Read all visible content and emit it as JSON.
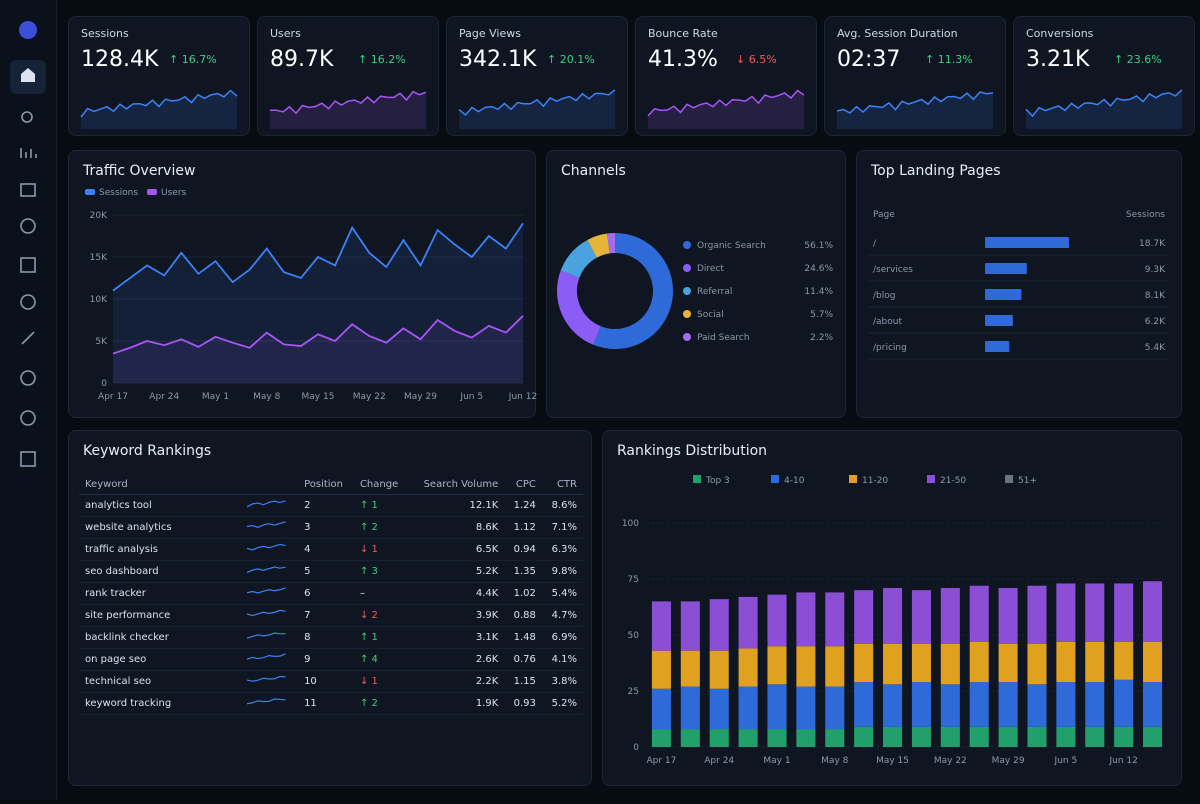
{
  "kpis": [
    {
      "label": "Sessions",
      "value": "128.4K",
      "change": "↑ 16.7%"
    },
    {
      "label": "Users",
      "value": "89.7K",
      "change": "↑ 16.2%"
    },
    {
      "label": "Page Views",
      "value": "342.1K",
      "change": "↑ 20.1%"
    },
    {
      "label": "Bounce Rate",
      "value": "41.3%",
      "change": "↓ 6.5%"
    },
    {
      "label": "Avg. Session Duration",
      "value": "02:37",
      "change": "↑ 11.3%"
    },
    {
      "label": "Conversions",
      "value": "3.21K",
      "change": "↑ 23.6%"
    }
  ],
  "traffic_overview": {
    "type": "line",
    "title": "Traffic Overview",
    "categories": [
      "Apr 17",
      null,
      null,
      "Apr 24",
      null,
      null,
      "May 1",
      null,
      null,
      "May 8",
      null,
      null,
      "May 15",
      null,
      null,
      "May 22",
      null,
      null,
      "May 29",
      null,
      null,
      "Jun 5",
      null,
      null,
      "Jun 12"
    ],
    "series": [
      {
        "name": "Sessions",
        "color": "#3b82f6",
        "values": [
          11000,
          12500,
          14000,
          12800,
          15500,
          13000,
          14500,
          12000,
          13500,
          16000,
          13200,
          12500,
          15000,
          14000,
          18500,
          15500,
          13800,
          17000,
          14000,
          18200,
          16500,
          15000,
          17500,
          16000,
          19000
        ]
      },
      {
        "name": "Users",
        "color": "#a855f7",
        "values": [
          3500,
          4200,
          5000,
          4500,
          5200,
          4300,
          5500,
          4800,
          4200,
          6000,
          4600,
          4400,
          5800,
          5000,
          7000,
          5600,
          4800,
          6500,
          5200,
          7500,
          6200,
          5400,
          6800,
          6000,
          8000
        ]
      }
    ],
    "ylim": [
      0,
      20000
    ],
    "yticks": [
      0,
      {
        "value": 5000,
        "label": "5K"
      },
      {
        "value": 10000,
        "label": "10K"
      },
      {
        "value": 15000,
        "label": "15K"
      },
      {
        "value": 20000,
        "label": "20K"
      }
    ]
  },
  "channels": {
    "type": "pie",
    "title": "Channels",
    "categories": [
      "Organic Search",
      "Direct",
      "Referral",
      "Social",
      "Paid Search"
    ],
    "values": [
      56.1,
      24.6,
      11.4,
      5.7,
      2.2
    ],
    "value_labels": [
      "56.1%",
      "24.6%",
      "11.4%",
      "5.7%",
      "2.2%"
    ],
    "colors": [
      "#2f6bd8",
      "#8b5cf6",
      "#4aa3df",
      "#e5b53a",
      "#a56cf0"
    ]
  },
  "landing_pages": {
    "title": "Top Landing Pages",
    "headers": [
      "Page",
      "Sessions"
    ],
    "pages": [
      "/",
      "/services",
      "/blog",
      "/about",
      "/pricing"
    ],
    "values": [
      18700,
      9300,
      8100,
      6200,
      5400
    ],
    "value_labels": [
      "18.7K",
      "9.3K",
      "8.1K",
      "6.2K",
      "5.4K"
    ],
    "color": "#2f6bd8"
  },
  "keywords": {
    "title": "Keyword Rankings",
    "headers": [
      "Keyword",
      "Position",
      "Change",
      "Search Volume",
      "CPC",
      "CTR"
    ],
    "rows": [
      [
        "analytics tool",
        2,
        "↑ 1",
        "12.1K",
        1.24,
        "8.6%"
      ],
      [
        "website analytics",
        3,
        "↑ 2",
        "8.6K",
        1.12,
        "7.1%"
      ],
      [
        "traffic analysis",
        4,
        "↓ 1",
        "6.5K",
        0.94,
        "6.3%"
      ],
      [
        "seo dashboard",
        5,
        "↑ 3",
        "5.2K",
        1.35,
        "9.8%"
      ],
      [
        "rank tracker",
        6,
        "–",
        "4.4K",
        1.02,
        "5.4%"
      ],
      [
        "site performance",
        7,
        "↓ 2",
        "3.9K",
        0.88,
        "4.7%"
      ],
      [
        "backlink checker",
        8,
        "↑ 1",
        "3.1K",
        1.48,
        "6.9%"
      ],
      [
        "on page seo",
        9,
        "↑ 4",
        "2.6K",
        0.76,
        "4.1%"
      ],
      [
        "technical seo",
        10,
        "↓ 1",
        "2.2K",
        1.15,
        "3.8%"
      ],
      [
        "keyword tracking",
        11,
        "↑ 2",
        "1.9K",
        0.93,
        "5.2%"
      ]
    ]
  },
  "rankings_distribution": {
    "type": "stacked_bar",
    "title": "Rankings Distribution",
    "categories": [
      "Apr 17",
      null,
      "Apr 24",
      null,
      "May 1",
      null,
      "May 8",
      null,
      "May 15",
      null,
      "May 22",
      null,
      "May 29",
      null,
      "Jun 5",
      null,
      "Jun 12",
      null
    ],
    "series": [
      {
        "name": "Top 3",
        "color": "#22a06b",
        "values": [
          8,
          8,
          8,
          8,
          8,
          8,
          8,
          9,
          9,
          9,
          9,
          9,
          9,
          9,
          9,
          9,
          9,
          9
        ]
      },
      {
        "name": "4-10",
        "color": "#2f6bd8",
        "values": [
          18,
          19,
          18,
          19,
          20,
          19,
          19,
          20,
          19,
          20,
          19,
          20,
          20,
          19,
          20,
          20,
          21,
          20
        ]
      },
      {
        "name": "11-20",
        "color": "#e0a020",
        "values": [
          17,
          16,
          17,
          17,
          17,
          18,
          18,
          17,
          18,
          17,
          18,
          18,
          17,
          18,
          18,
          18,
          17,
          18
        ]
      },
      {
        "name": "21-50",
        "color": "#8b4fd6",
        "values": [
          22,
          22,
          23,
          23,
          23,
          24,
          24,
          24,
          25,
          24,
          25,
          25,
          25,
          26,
          26,
          26,
          26,
          27
        ]
      },
      {
        "name": "51+",
        "color": "#6b7280",
        "values": [
          0,
          0,
          0,
          0,
          0,
          0,
          0,
          0,
          0,
          0,
          0,
          0,
          0,
          0,
          0,
          0,
          0,
          0
        ]
      }
    ],
    "ylim": [
      0,
      100
    ],
    "yticks": [
      0,
      25,
      50,
      75,
      100
    ]
  }
}
